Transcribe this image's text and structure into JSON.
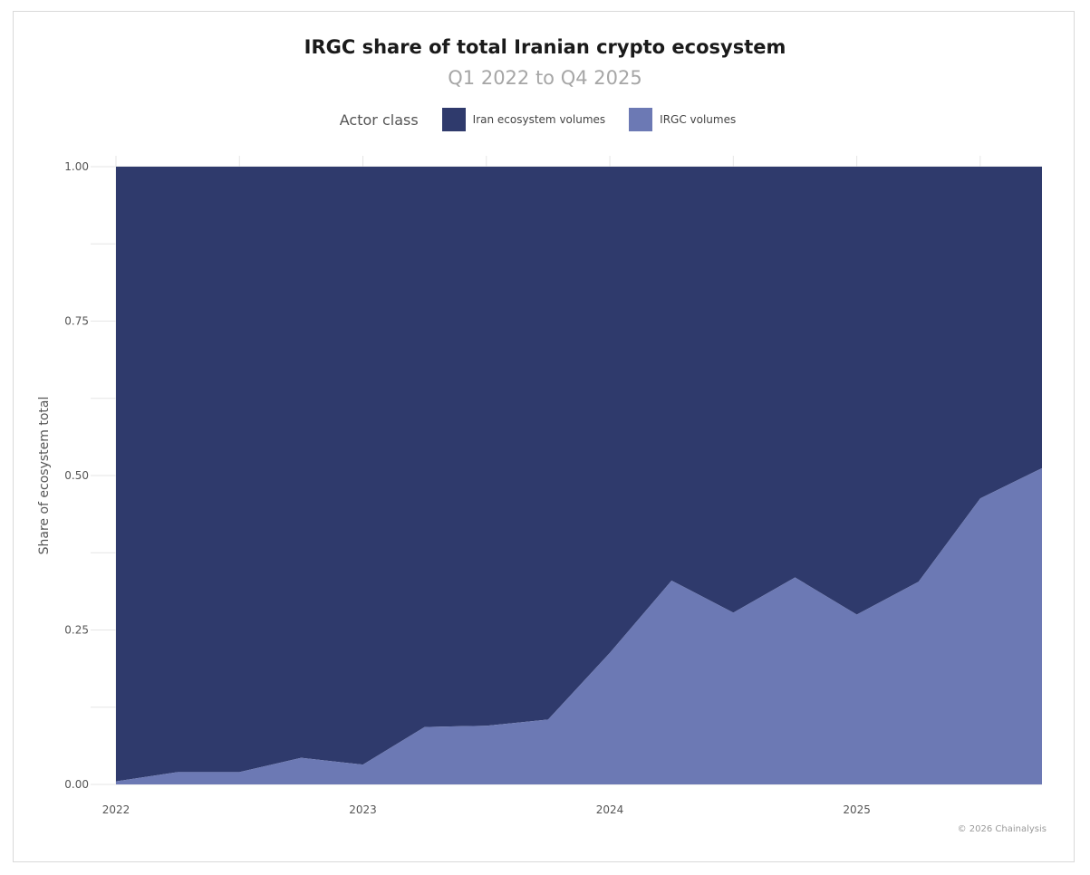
{
  "chart_data": {
    "type": "area",
    "title": "IRGC share of total Iranian crypto ecosystem",
    "subtitle": "Q1 2022 to Q4 2025",
    "legend_title": "Actor class",
    "legend_placement": "top-center",
    "xlabel": "",
    "ylabel": "Share of ecosystem total",
    "ylim": [
      0,
      1
    ],
    "yticks": [
      "0.00",
      "0.25",
      "0.50",
      "0.75",
      "1.00"
    ],
    "xticks": [
      "2022",
      "2023",
      "2024",
      "2025"
    ],
    "grid": true,
    "x": [
      "2022-Q1",
      "2022-Q2",
      "2022-Q3",
      "2022-Q4",
      "2023-Q1",
      "2023-Q2",
      "2023-Q3",
      "2023-Q4",
      "2024-Q1",
      "2024-Q2",
      "2024-Q3",
      "2024-Q4",
      "2025-Q1",
      "2025-Q2",
      "2025-Q3",
      "2025-Q4"
    ],
    "series": [
      {
        "name": "Iran ecosystem volumes",
        "color": "#2f3a6c",
        "values": [
          0.995,
          0.98,
          0.98,
          0.957,
          0.968,
          0.907,
          0.905,
          0.895,
          0.787,
          0.67,
          0.722,
          0.665,
          0.725,
          0.672,
          0.537,
          0.488
        ]
      },
      {
        "name": "IRGC volumes",
        "color": "#6c79b4",
        "values": [
          0.005,
          0.02,
          0.02,
          0.043,
          0.032,
          0.093,
          0.095,
          0.105,
          0.213,
          0.33,
          0.278,
          0.335,
          0.275,
          0.328,
          0.463,
          0.512
        ]
      }
    ],
    "copyright": "© 2026 Chainalysis"
  }
}
